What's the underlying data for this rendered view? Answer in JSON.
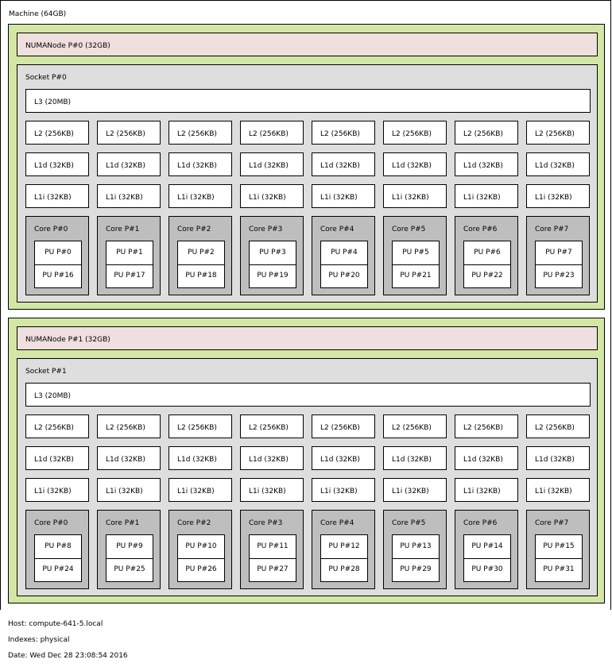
{
  "machine": {
    "label": "Machine (64GB)"
  },
  "numa_groups": [
    {
      "node_label": "NUMANode P#0 (32GB)",
      "socket_label": "Socket P#0",
      "l3_label": "L3 (20MB)",
      "l2_label": "L2 (256KB)",
      "l1d_label": "L1d (32KB)",
      "l1i_label": "L1i (32KB)",
      "cores": [
        {
          "label": "Core P#0",
          "pu_a": "PU P#0",
          "pu_b": "PU P#16"
        },
        {
          "label": "Core P#1",
          "pu_a": "PU P#1",
          "pu_b": "PU P#17"
        },
        {
          "label": "Core P#2",
          "pu_a": "PU P#2",
          "pu_b": "PU P#18"
        },
        {
          "label": "Core P#3",
          "pu_a": "PU P#3",
          "pu_b": "PU P#19"
        },
        {
          "label": "Core P#4",
          "pu_a": "PU P#4",
          "pu_b": "PU P#20"
        },
        {
          "label": "Core P#5",
          "pu_a": "PU P#5",
          "pu_b": "PU P#21"
        },
        {
          "label": "Core P#6",
          "pu_a": "PU P#6",
          "pu_b": "PU P#22"
        },
        {
          "label": "Core P#7",
          "pu_a": "PU P#7",
          "pu_b": "PU P#23"
        }
      ]
    },
    {
      "node_label": "NUMANode P#1 (32GB)",
      "socket_label": "Socket P#1",
      "l3_label": "L3 (20MB)",
      "l2_label": "L2 (256KB)",
      "l1d_label": "L1d (32KB)",
      "l1i_label": "L1i (32KB)",
      "cores": [
        {
          "label": "Core P#0",
          "pu_a": "PU P#8",
          "pu_b": "PU P#24"
        },
        {
          "label": "Core P#1",
          "pu_a": "PU P#9",
          "pu_b": "PU P#25"
        },
        {
          "label": "Core P#2",
          "pu_a": "PU P#10",
          "pu_b": "PU P#26"
        },
        {
          "label": "Core P#3",
          "pu_a": "PU P#11",
          "pu_b": "PU P#27"
        },
        {
          "label": "Core P#4",
          "pu_a": "PU P#12",
          "pu_b": "PU P#28"
        },
        {
          "label": "Core P#5",
          "pu_a": "PU P#13",
          "pu_b": "PU P#29"
        },
        {
          "label": "Core P#6",
          "pu_a": "PU P#14",
          "pu_b": "PU P#30"
        },
        {
          "label": "Core P#7",
          "pu_a": "PU P#15",
          "pu_b": "PU P#31"
        }
      ]
    }
  ],
  "footer": {
    "host": "Host: compute-641-5.local",
    "indexes": "Indexes: physical",
    "date": "Date: Wed Dec 28 23:08:54 2016"
  },
  "colors": {
    "machine": "#ffffff",
    "numa_group": "#d2e7a4",
    "numa_node": "#efdfde",
    "socket": "#dedede",
    "cache": "#ffffff",
    "core": "#bebebe",
    "pu": "#ffffff"
  }
}
